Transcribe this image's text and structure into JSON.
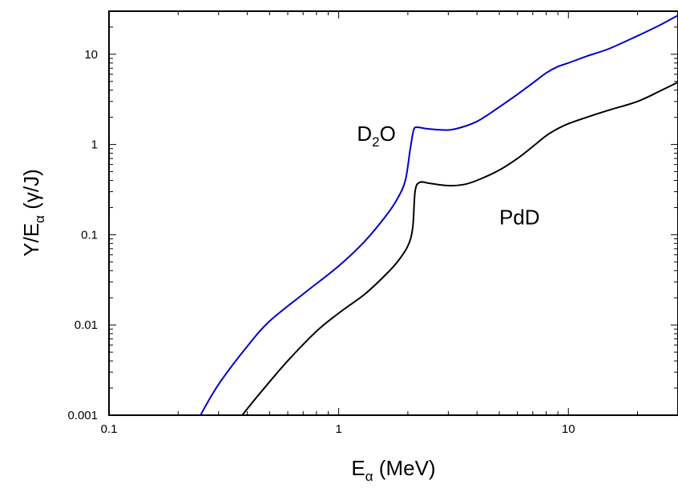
{
  "chart_data": {
    "type": "line",
    "xlabel": {
      "main": "E",
      "sub": "α",
      "tail": " (MeV)"
    },
    "ylabel": {
      "main": "Y/E",
      "sub": "α",
      "tail": " (γ/J)"
    },
    "xscale": "log",
    "yscale": "log",
    "xlim": [
      0.1,
      30
    ],
    "ylim": [
      0.001,
      30
    ],
    "grid": false,
    "xticks": [
      {
        "value": 0.1,
        "label": "0.1"
      },
      {
        "value": 1,
        "label": "1"
      },
      {
        "value": 10,
        "label": "10"
      }
    ],
    "yticks": [
      {
        "value": 0.001,
        "label": "0.001"
      },
      {
        "value": 0.01,
        "label": "0.01"
      },
      {
        "value": 0.1,
        "label": "0.1"
      },
      {
        "value": 1,
        "label": "1"
      },
      {
        "value": 10,
        "label": "10"
      }
    ],
    "series": [
      {
        "color": "#0000cc",
        "x": [
          0.25,
          0.3,
          0.4,
          0.5,
          0.7,
          1.0,
          1.3,
          1.6,
          1.8,
          1.95,
          2.05,
          2.12,
          2.2,
          2.4,
          2.8,
          3.2,
          4,
          5,
          6,
          7,
          8,
          9,
          10,
          12,
          15,
          20,
          25,
          30
        ],
        "y": [
          0.001,
          0.0022,
          0.0058,
          0.011,
          0.022,
          0.045,
          0.085,
          0.16,
          0.25,
          0.4,
          0.9,
          1.45,
          1.55,
          1.5,
          1.45,
          1.48,
          1.8,
          2.6,
          3.6,
          4.8,
          6.2,
          7.3,
          8.0,
          9.5,
          11.5,
          16,
          21,
          27
        ]
      },
      {
        "color": "#000000",
        "x": [
          0.38,
          0.45,
          0.6,
          0.8,
          1.0,
          1.3,
          1.6,
          1.8,
          2.0,
          2.1,
          2.15,
          2.25,
          2.5,
          3.0,
          3.5,
          4,
          5,
          6,
          7,
          8,
          9,
          10,
          12,
          15,
          20,
          25,
          30
        ],
        "y": [
          0.001,
          0.0017,
          0.004,
          0.0085,
          0.0135,
          0.022,
          0.036,
          0.05,
          0.075,
          0.12,
          0.3,
          0.38,
          0.37,
          0.35,
          0.36,
          0.4,
          0.52,
          0.7,
          0.95,
          1.25,
          1.5,
          1.7,
          2.0,
          2.4,
          3.0,
          3.9,
          4.9
        ]
      }
    ],
    "annotations": [
      {
        "id": "d2o",
        "main": "D",
        "sub": "2",
        "tail": "O",
        "x": 1.2,
        "y": 1.1
      },
      {
        "id": "pdd",
        "main": "PdD",
        "sub": "",
        "tail": "",
        "x": 5.0,
        "y": 0.13
      }
    ]
  }
}
